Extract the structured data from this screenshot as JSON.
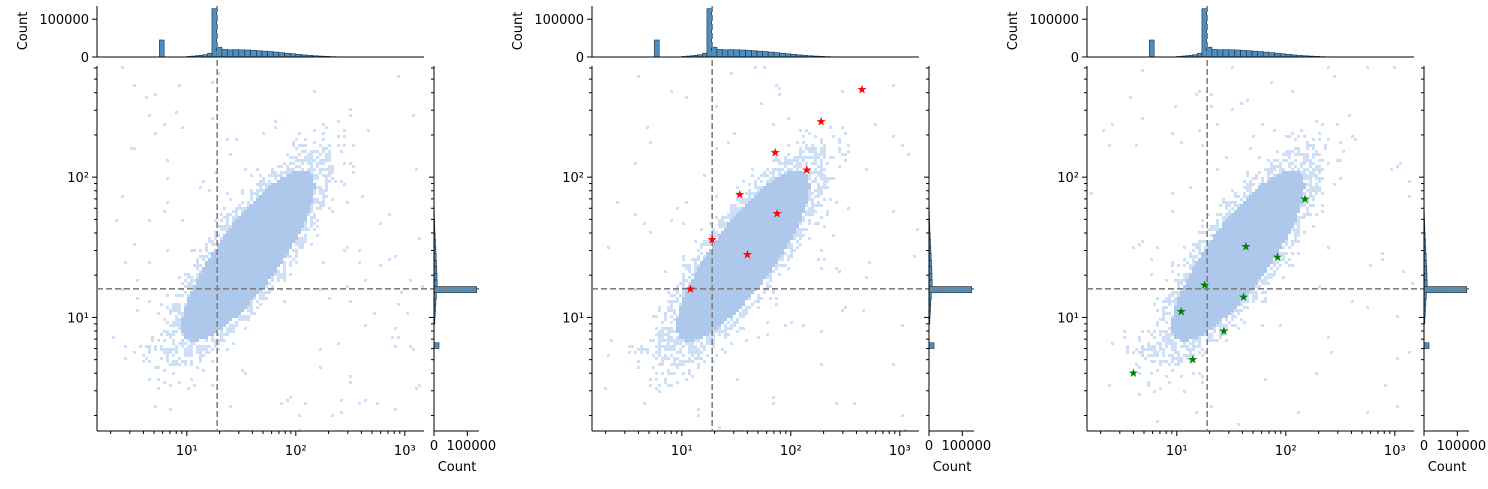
{
  "colors": {
    "joint": "#aec8ec",
    "joint_light": "#cfe0f6",
    "hist_fill": "#4c8fc2",
    "hist_edge": "#1f2d3d",
    "refline": "#808080",
    "axis": "#000000"
  },
  "chart_data": [
    {
      "type": "scatter",
      "kind": "jointplot-2d-histogram",
      "xscale": "log",
      "yscale": "log",
      "xlim": [
        1.5,
        1500
      ],
      "ylim": [
        1.55,
        620
      ],
      "xticks": [
        {
          "v": 10,
          "label": "10¹"
        },
        {
          "v": 100,
          "label": "10²"
        },
        {
          "v": 1000,
          "label": "10³"
        }
      ],
      "yticks": [
        {
          "v": 10,
          "label": "10¹"
        },
        {
          "v": 100,
          "label": "10²"
        }
      ],
      "refline_x": 19,
      "refline_y": 16,
      "marginal_x": {
        "ylabel": "Count",
        "yticks": [
          {
            "v": 0,
            "label": "0"
          },
          {
            "v": 100000,
            "label": "100000"
          }
        ],
        "ylim": [
          0,
          135000
        ]
      },
      "marginal_y": {
        "xlabel": "Count",
        "xticks": [
          {
            "v": 0,
            "label": "0"
          },
          {
            "v": 100000,
            "label": "100000"
          }
        ],
        "xlim": [
          0,
          135000
        ]
      },
      "markers": {
        "color": "",
        "symbol": "★",
        "x": [],
        "y": []
      }
    },
    {
      "type": "scatter",
      "kind": "jointplot-2d-histogram",
      "xscale": "log",
      "yscale": "log",
      "xlim": [
        1.5,
        1500
      ],
      "ylim": [
        1.55,
        620
      ],
      "xticks": [
        {
          "v": 10,
          "label": "10¹"
        },
        {
          "v": 100,
          "label": "10²"
        },
        {
          "v": 1000,
          "label": "10³"
        }
      ],
      "yticks": [
        {
          "v": 10,
          "label": "10¹"
        },
        {
          "v": 100,
          "label": "10²"
        }
      ],
      "refline_x": 19,
      "refline_y": 16,
      "marginal_x": {
        "ylabel": "Count",
        "yticks": [
          {
            "v": 0,
            "label": "0"
          },
          {
            "v": 100000,
            "label": "100000"
          }
        ],
        "ylim": [
          0,
          135000
        ]
      },
      "marginal_y": {
        "xlabel": "Count",
        "xticks": [
          {
            "v": 0,
            "label": "0"
          },
          {
            "v": 100000,
            "label": "100000"
          }
        ],
        "xlim": [
          0,
          135000
        ]
      },
      "markers": {
        "color": "#ff0000",
        "symbol": "★",
        "x": [
          12,
          19,
          34,
          40,
          72,
          75,
          140,
          190,
          450
        ],
        "y": [
          16,
          36,
          75,
          28,
          150,
          55,
          112,
          250,
          420
        ]
      }
    },
    {
      "type": "scatter",
      "kind": "jointplot-2d-histogram",
      "xscale": "log",
      "yscale": "log",
      "xlim": [
        1.5,
        1500
      ],
      "ylim": [
        1.55,
        620
      ],
      "xticks": [
        {
          "v": 10,
          "label": "10¹"
        },
        {
          "v": 100,
          "label": "10²"
        },
        {
          "v": 1000,
          "label": "10³"
        }
      ],
      "yticks": [
        {
          "v": 10,
          "label": "10¹"
        },
        {
          "v": 100,
          "label": "10²"
        }
      ],
      "refline_x": 19,
      "refline_y": 16,
      "marginal_x": {
        "ylabel": "Count",
        "yticks": [
          {
            "v": 0,
            "label": "0"
          },
          {
            "v": 100000,
            "label": "100000"
          }
        ],
        "ylim": [
          0,
          135000
        ]
      },
      "marginal_y": {
        "xlabel": "Count",
        "xticks": [
          {
            "v": 0,
            "label": "0"
          },
          {
            "v": 100000,
            "label": "100000"
          }
        ],
        "xlim": [
          0,
          135000
        ]
      },
      "markers": {
        "color": "#008000",
        "symbol": "★",
        "x": [
          4,
          11,
          14,
          18,
          27,
          41,
          43,
          84,
          150
        ],
        "y": [
          4,
          11,
          5,
          17,
          8,
          14,
          32,
          27,
          70
        ]
      }
    }
  ],
  "marginal_x_hist": {
    "bins": [
      {
        "x0": 5.6,
        "x1": 6.2,
        "count": 45000
      },
      {
        "x0": 10.0,
        "x1": 11.0,
        "count": 1500
      },
      {
        "x0": 11.0,
        "x1": 12.0,
        "count": 2500
      },
      {
        "x0": 12.0,
        "x1": 13.0,
        "count": 3500
      },
      {
        "x0": 13.0,
        "x1": 14.0,
        "count": 4500
      },
      {
        "x0": 14.0,
        "x1": 15.5,
        "count": 6000
      },
      {
        "x0": 15.5,
        "x1": 17.0,
        "count": 10000
      },
      {
        "x0": 17.0,
        "x1": 18.8,
        "count": 128000
      },
      {
        "x0": 18.8,
        "x1": 21.0,
        "count": 26000
      },
      {
        "x0": 21.0,
        "x1": 23.5,
        "count": 20000
      },
      {
        "x0": 23.5,
        "x1": 26.5,
        "count": 19000
      },
      {
        "x0": 26.5,
        "x1": 30.0,
        "count": 19500
      },
      {
        "x0": 30.0,
        "x1": 34.0,
        "count": 19000
      },
      {
        "x0": 34.0,
        "x1": 38.5,
        "count": 18500
      },
      {
        "x0": 38.5,
        "x1": 43.5,
        "count": 17500
      },
      {
        "x0": 43.5,
        "x1": 49.0,
        "count": 16500
      },
      {
        "x0": 49.0,
        "x1": 55.0,
        "count": 15500
      },
      {
        "x0": 55.0,
        "x1": 62.0,
        "count": 14500
      },
      {
        "x0": 62.0,
        "x1": 70.0,
        "count": 13000
      },
      {
        "x0": 70.0,
        "x1": 79.0,
        "count": 11500
      },
      {
        "x0": 79.0,
        "x1": 89.0,
        "count": 10000
      },
      {
        "x0": 89.0,
        "x1": 100.0,
        "count": 8500
      },
      {
        "x0": 100.0,
        "x1": 113.0,
        "count": 7000
      },
      {
        "x0": 113.0,
        "x1": 127.0,
        "count": 5500
      },
      {
        "x0": 127.0,
        "x1": 143.0,
        "count": 4200
      },
      {
        "x0": 143.0,
        "x1": 161.0,
        "count": 3200
      },
      {
        "x0": 161.0,
        "x1": 181.0,
        "count": 2400
      },
      {
        "x0": 181.0,
        "x1": 204.0,
        "count": 1600
      },
      {
        "x0": 204.0,
        "x1": 230.0,
        "count": 1000
      },
      {
        "x0": 230.0,
        "x1": 260.0,
        "count": 600
      }
    ]
  },
  "marginal_y_hist": {
    "bins": [
      {
        "y0": 6.0,
        "y1": 6.6,
        "count": 15000
      },
      {
        "y0": 9.0,
        "y1": 10.0,
        "count": 2500
      },
      {
        "y0": 10.0,
        "y1": 11.0,
        "count": 3500
      },
      {
        "y0": 11.0,
        "y1": 12.2,
        "count": 4500
      },
      {
        "y0": 12.2,
        "y1": 13.5,
        "count": 5500
      },
      {
        "y0": 13.5,
        "y1": 15.0,
        "count": 7000
      },
      {
        "y0": 15.0,
        "y1": 16.6,
        "count": 128000
      },
      {
        "y0": 16.6,
        "y1": 18.5,
        "count": 9500
      },
      {
        "y0": 18.5,
        "y1": 20.5,
        "count": 9000
      },
      {
        "y0": 20.5,
        "y1": 23.0,
        "count": 8500
      },
      {
        "y0": 23.0,
        "y1": 25.5,
        "count": 7500
      },
      {
        "y0": 25.5,
        "y1": 28.5,
        "count": 6500
      },
      {
        "y0": 28.5,
        "y1": 32.0,
        "count": 5500
      },
      {
        "y0": 32.0,
        "y1": 36.0,
        "count": 4500
      },
      {
        "y0": 36.0,
        "y1": 40.0,
        "count": 3500
      },
      {
        "y0": 40.0,
        "y1": 45.0,
        "count": 2500
      },
      {
        "y0": 45.0,
        "y1": 50.0,
        "count": 1800
      },
      {
        "y0": 50.0,
        "y1": 56.0,
        "count": 1200
      },
      {
        "y0": 56.0,
        "y1": 63.0,
        "count": 700
      }
    ]
  }
}
